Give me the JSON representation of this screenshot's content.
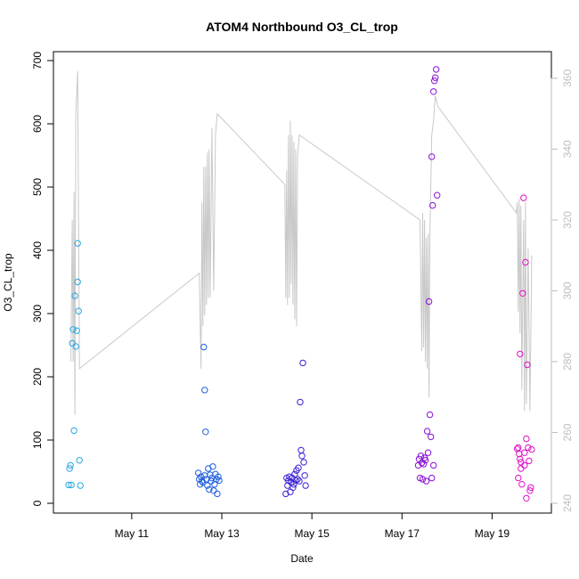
{
  "chart_data": {
    "type": "scatter",
    "title": "ATOM4 Northbound O3_CL_trop",
    "xlabel": "Date",
    "ylabel": "O3_CL_trop",
    "x_unit": "days (May, day of month)",
    "xlim": [
      9.5,
      20.0
    ],
    "ylim": [
      0,
      700
    ],
    "y2lim": [
      240,
      365
    ],
    "x_ticks": [
      {
        "value": 11,
        "label": "May 11"
      },
      {
        "value": 13,
        "label": "May 13"
      },
      {
        "value": 15,
        "label": "May 15"
      },
      {
        "value": 17,
        "label": "May 17"
      },
      {
        "value": 19,
        "label": "May 19"
      }
    ],
    "y_ticks": [
      0,
      100,
      200,
      300,
      400,
      500,
      600,
      700
    ],
    "y2_ticks": [
      240,
      260,
      280,
      300,
      320,
      340,
      360
    ],
    "series": [
      {
        "color": "#29a8e0",
        "points": [
          [
            9.6,
            29
          ],
          [
            9.62,
            55
          ],
          [
            9.64,
            60
          ],
          [
            9.66,
            29
          ],
          [
            9.68,
            253
          ],
          [
            9.7,
            275
          ],
          [
            9.72,
            115
          ],
          [
            9.74,
            328
          ],
          [
            9.76,
            248
          ],
          [
            9.78,
            273
          ],
          [
            9.8,
            350
          ],
          [
            9.8,
            411
          ],
          [
            9.82,
            304
          ],
          [
            9.84,
            68
          ],
          [
            9.86,
            28
          ]
        ]
      },
      {
        "color": "#1f5fe0",
        "points": [
          [
            12.48,
            48
          ],
          [
            12.5,
            38
          ],
          [
            12.52,
            30
          ],
          [
            12.54,
            42
          ],
          [
            12.56,
            35
          ],
          [
            12.58,
            33
          ],
          [
            12.6,
            247
          ],
          [
            12.62,
            44
          ],
          [
            12.62,
            179
          ],
          [
            12.64,
            113
          ],
          [
            12.66,
            38
          ],
          [
            12.68,
            28
          ],
          [
            12.7,
            55
          ],
          [
            12.72,
            22
          ],
          [
            12.74,
            45
          ],
          [
            12.76,
            35
          ],
          [
            12.78,
            40
          ],
          [
            12.8,
            58
          ],
          [
            12.82,
            20
          ],
          [
            12.84,
            30
          ],
          [
            12.86,
            46
          ],
          [
            12.88,
            38
          ],
          [
            12.9,
            15
          ],
          [
            12.92,
            42
          ],
          [
            12.94,
            36
          ]
        ]
      },
      {
        "color": "#3a22d6",
        "points": [
          [
            14.42,
            15
          ],
          [
            14.44,
            40
          ],
          [
            14.46,
            28
          ],
          [
            14.48,
            36
          ],
          [
            14.5,
            42
          ],
          [
            14.52,
            18
          ],
          [
            14.54,
            33
          ],
          [
            14.56,
            40
          ],
          [
            14.58,
            25
          ],
          [
            14.6,
            30
          ],
          [
            14.62,
            46
          ],
          [
            14.64,
            36
          ],
          [
            14.66,
            52
          ],
          [
            14.68,
            38
          ],
          [
            14.7,
            56
          ],
          [
            14.72,
            35
          ],
          [
            14.74,
            160
          ],
          [
            14.76,
            84
          ],
          [
            14.78,
            75
          ],
          [
            14.8,
            222
          ],
          [
            14.82,
            65
          ],
          [
            14.84,
            44
          ],
          [
            14.86,
            28
          ]
        ]
      },
      {
        "color": "#8a10d8",
        "points": [
          [
            17.36,
            60
          ],
          [
            17.38,
            70
          ],
          [
            17.4,
            40
          ],
          [
            17.42,
            75
          ],
          [
            17.44,
            64
          ],
          [
            17.46,
            38
          ],
          [
            17.48,
            62
          ],
          [
            17.5,
            72
          ],
          [
            17.52,
            68
          ],
          [
            17.54,
            35
          ],
          [
            17.56,
            114
          ],
          [
            17.58,
            80
          ],
          [
            17.6,
            319
          ],
          [
            17.62,
            140
          ],
          [
            17.64,
            105
          ],
          [
            17.66,
            548
          ],
          [
            17.68,
            471
          ],
          [
            17.7,
            651
          ],
          [
            17.72,
            668
          ],
          [
            17.74,
            673
          ],
          [
            17.76,
            686
          ],
          [
            17.78,
            487
          ],
          [
            17.7,
            60
          ],
          [
            17.66,
            40
          ]
        ]
      },
      {
        "color": "#e010c8",
        "points": [
          [
            19.56,
            86
          ],
          [
            19.58,
            88
          ],
          [
            19.6,
            78
          ],
          [
            19.62,
            236
          ],
          [
            19.64,
            65
          ],
          [
            19.64,
            55
          ],
          [
            19.66,
            30
          ],
          [
            19.68,
            332
          ],
          [
            19.7,
            483
          ],
          [
            19.72,
            80
          ],
          [
            19.74,
            381
          ],
          [
            19.76,
            102
          ],
          [
            19.76,
            8
          ],
          [
            19.78,
            219
          ],
          [
            19.8,
            88
          ],
          [
            19.82,
            67
          ],
          [
            19.84,
            20
          ],
          [
            19.86,
            25
          ],
          [
            19.88,
            85
          ],
          [
            19.62,
            70
          ],
          [
            19.72,
            60
          ],
          [
            19.58,
            40
          ]
        ]
      },
      {
        "name": "",
        "color": "#c8c8c8",
        "type": "line",
        "axis": "y2",
        "points": [
          [
            9.65,
            280
          ],
          [
            9.68,
            320
          ],
          [
            9.7,
            280
          ],
          [
            9.72,
            328
          ],
          [
            9.74,
            265
          ],
          [
            9.76,
            350
          ],
          [
            9.8,
            362
          ],
          [
            9.84,
            278
          ],
          [
            12.5,
            305
          ],
          [
            12.54,
            278
          ],
          [
            12.56,
            325
          ],
          [
            12.58,
            290
          ],
          [
            12.6,
            335
          ],
          [
            12.62,
            293
          ],
          [
            12.64,
            335
          ],
          [
            12.66,
            296
          ],
          [
            12.68,
            339
          ],
          [
            12.7,
            298
          ],
          [
            12.72,
            340
          ],
          [
            12.74,
            298
          ],
          [
            12.78,
            346
          ],
          [
            12.82,
            300
          ],
          [
            12.86,
            344
          ],
          [
            12.9,
            350
          ],
          [
            14.4,
            330
          ],
          [
            14.42,
            298
          ],
          [
            14.44,
            334
          ],
          [
            14.46,
            296
          ],
          [
            14.48,
            344
          ],
          [
            14.5,
            298
          ],
          [
            14.52,
            348
          ],
          [
            14.54,
            302
          ],
          [
            14.56,
            344
          ],
          [
            14.58,
            296
          ],
          [
            14.6,
            342
          ],
          [
            14.62,
            292
          ],
          [
            14.64,
            340
          ],
          [
            14.66,
            290
          ],
          [
            14.68,
            338
          ],
          [
            14.72,
            344
          ],
          [
            17.4,
            320
          ],
          [
            17.44,
            283
          ],
          [
            17.46,
            322
          ],
          [
            17.48,
            284
          ],
          [
            17.5,
            320
          ],
          [
            17.52,
            280
          ],
          [
            17.54,
            315
          ],
          [
            17.56,
            278
          ],
          [
            17.58,
            316
          ],
          [
            17.6,
            270
          ],
          [
            17.62,
            316
          ],
          [
            17.66,
            344
          ],
          [
            17.7,
            348
          ],
          [
            17.74,
            355
          ],
          [
            17.8,
            352
          ],
          [
            19.54,
            322
          ],
          [
            19.56,
            325
          ],
          [
            19.58,
            294
          ],
          [
            19.6,
            326
          ],
          [
            19.62,
            288
          ],
          [
            19.64,
            324
          ],
          [
            19.66,
            272
          ],
          [
            19.7,
            320
          ],
          [
            19.72,
            266
          ],
          [
            19.74,
            325
          ],
          [
            19.76,
            268
          ],
          [
            19.8,
            312
          ],
          [
            19.84,
            266
          ],
          [
            19.88,
            310
          ]
        ]
      }
    ],
    "grid": false,
    "legend": "none"
  }
}
